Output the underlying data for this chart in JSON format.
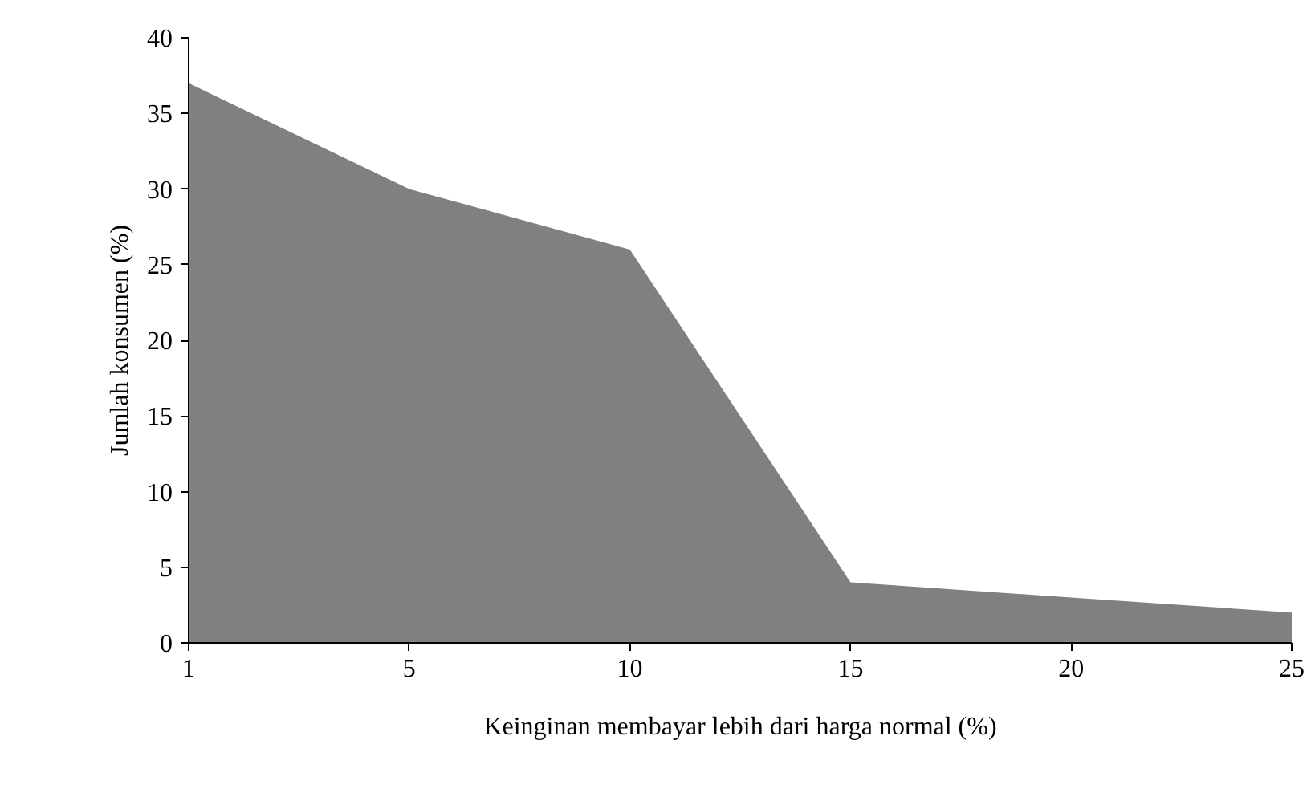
{
  "chart_data": {
    "type": "area",
    "xlabel": "Keinginan membayar lebih dari harga normal (%)",
    "ylabel": "Jumlah konsumen (%)",
    "categories": [
      "1",
      "5",
      "10",
      "15",
      "20",
      "25"
    ],
    "series": [
      {
        "color": "#808080",
        "values": [
          37,
          30,
          26,
          4,
          3,
          2
        ]
      }
    ],
    "ylim": [
      0,
      40
    ],
    "yticks": [
      0,
      5,
      10,
      15,
      20,
      25,
      30,
      35,
      40
    ],
    "grid": false
  }
}
